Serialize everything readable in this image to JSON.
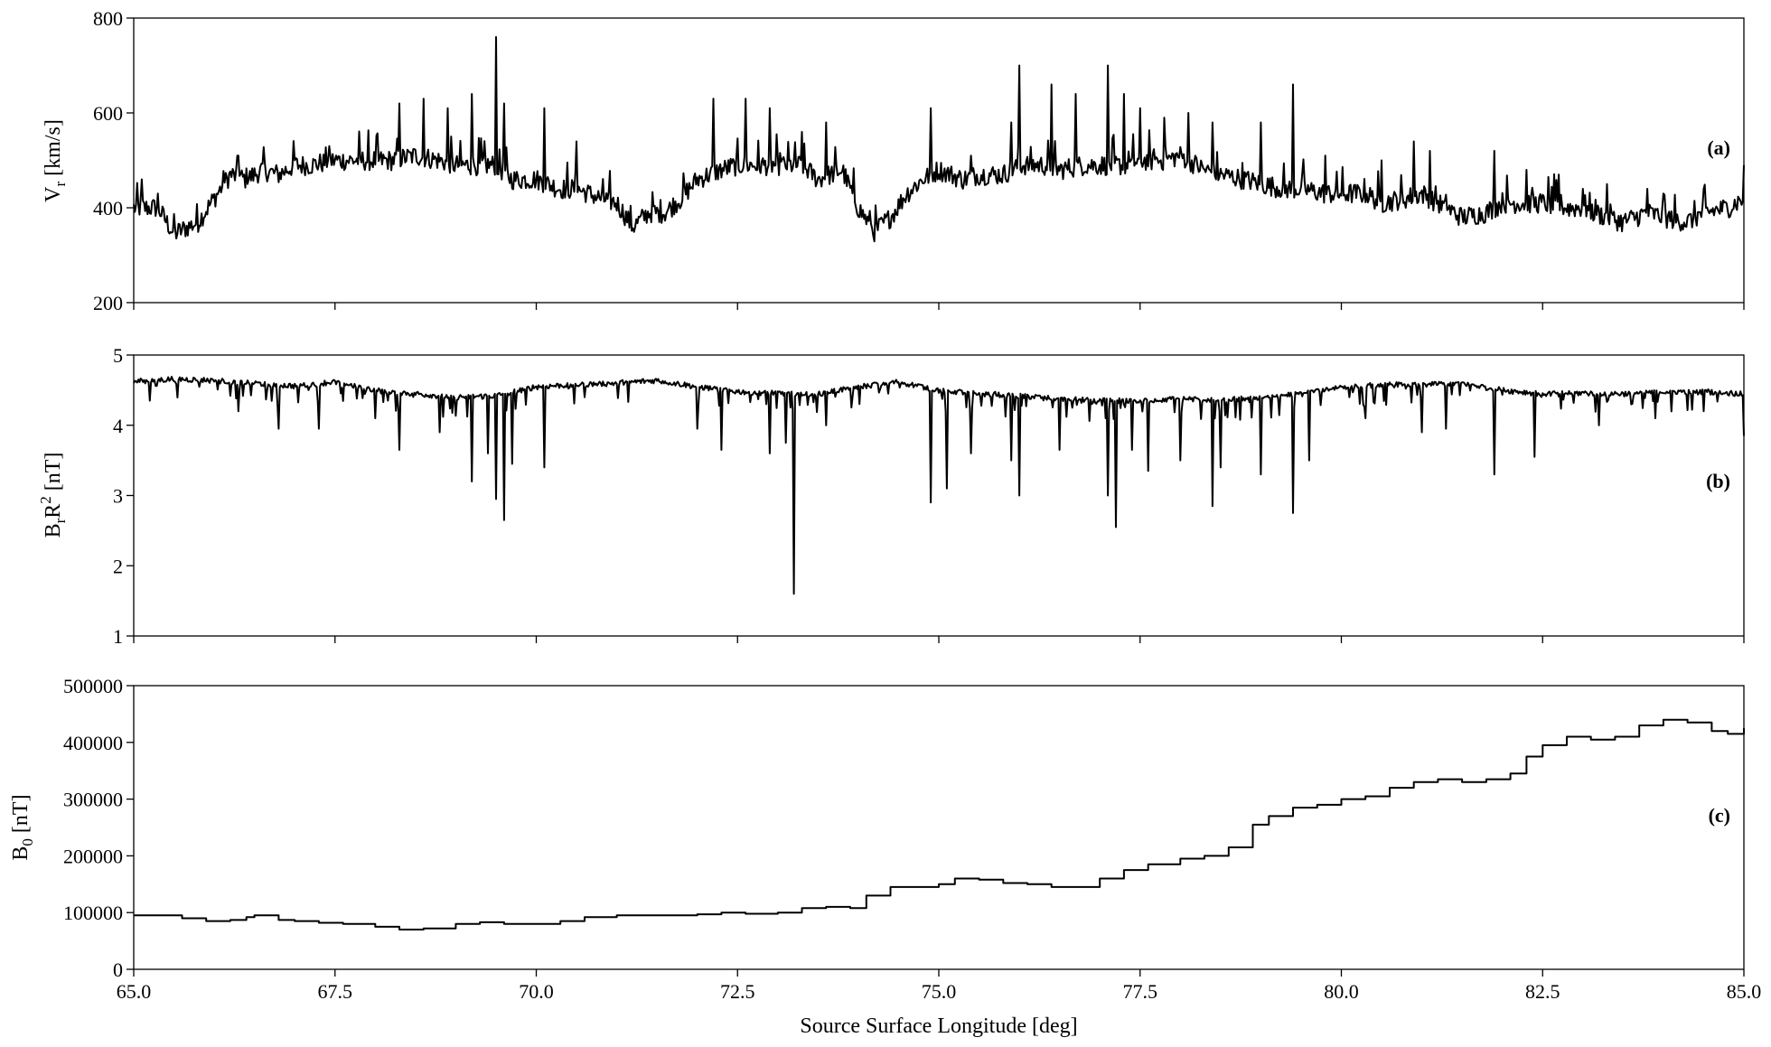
{
  "chart_data": [
    {
      "type": "line",
      "panel_tag": "(a)",
      "ylabel_main": "V",
      "ylabel_sub": "r",
      "ylabel_rest": " [km/s]",
      "xlim": [
        65.0,
        85.0
      ],
      "ylim": [
        200,
        800
      ],
      "yticks": [
        {
          "value": 200,
          "label": "200"
        },
        {
          "value": 400,
          "label": "400"
        },
        {
          "value": 600,
          "label": "600"
        },
        {
          "value": 800,
          "label": "800"
        }
      ],
      "x": [
        65.0,
        65.3,
        65.5,
        65.8,
        66.0,
        66.2,
        66.4,
        66.6,
        66.8,
        67.0,
        67.2,
        67.5,
        67.7,
        68.0,
        68.2,
        68.5,
        68.8,
        69.0,
        69.3,
        69.5,
        69.7,
        70.0,
        70.3,
        70.5,
        70.8,
        71.0,
        71.2,
        71.4,
        71.6,
        71.8,
        72.0,
        72.3,
        72.5,
        72.8,
        73.0,
        73.3,
        73.5,
        73.8,
        74.0,
        74.2,
        74.4,
        74.6,
        74.8,
        75.0,
        75.3,
        75.5,
        75.8,
        76.0,
        76.3,
        76.5,
        76.8,
        77.0,
        77.3,
        77.5,
        77.8,
        78.0,
        78.3,
        78.5,
        78.8,
        79.0,
        79.3,
        79.5,
        79.8,
        80.0,
        80.3,
        80.5,
        80.8,
        81.0,
        81.3,
        81.5,
        81.8,
        82.0,
        82.3,
        82.5,
        82.8,
        83.0,
        83.3,
        83.5,
        83.8,
        84.0,
        84.3,
        84.5,
        84.8,
        85.0
      ],
      "y": [
        400,
        400,
        345,
        370,
        420,
        470,
        460,
        480,
        470,
        490,
        490,
        500,
        500,
        500,
        500,
        510,
        500,
        490,
        490,
        490,
        460,
        460,
        440,
        440,
        420,
        410,
        360,
        390,
        390,
        420,
        460,
        480,
        490,
        490,
        490,
        490,
        460,
        480,
        400,
        350,
        380,
        430,
        460,
        480,
        460,
        470,
        470,
        490,
        490,
        480,
        490,
        490,
        490,
        500,
        500,
        510,
        480,
        470,
        460,
        450,
        440,
        440,
        430,
        430,
        430,
        410,
        420,
        430,
        400,
        380,
        390,
        410,
        410,
        410,
        400,
        400,
        380,
        370,
        390,
        380,
        370,
        390,
        400,
        420
      ],
      "spikes": [
        [
          65.1,
          460
        ],
        [
          65.3,
          430
        ],
        [
          66.3,
          510
        ],
        [
          67.0,
          500
        ],
        [
          68.3,
          620
        ],
        [
          68.6,
          630
        ],
        [
          68.9,
          610
        ],
        [
          69.2,
          640
        ],
        [
          69.5,
          760
        ],
        [
          69.6,
          620
        ],
        [
          70.1,
          610
        ],
        [
          70.5,
          540
        ],
        [
          72.2,
          630
        ],
        [
          72.6,
          630
        ],
        [
          72.9,
          610
        ],
        [
          73.3,
          560
        ],
        [
          73.6,
          580
        ],
        [
          74.9,
          610
        ],
        [
          75.4,
          510
        ],
        [
          75.9,
          580
        ],
        [
          76.0,
          700
        ],
        [
          76.4,
          660
        ],
        [
          76.7,
          640
        ],
        [
          77.1,
          700
        ],
        [
          77.3,
          640
        ],
        [
          77.5,
          610
        ],
        [
          77.8,
          590
        ],
        [
          78.1,
          600
        ],
        [
          78.4,
          580
        ],
        [
          79.0,
          580
        ],
        [
          79.4,
          660
        ],
        [
          79.8,
          510
        ],
        [
          80.5,
          500
        ],
        [
          80.9,
          540
        ],
        [
          81.1,
          520
        ],
        [
          81.9,
          520
        ],
        [
          82.3,
          480
        ],
        [
          82.7,
          470
        ],
        [
          83.0,
          440
        ],
        [
          83.3,
          450
        ],
        [
          83.8,
          440
        ],
        [
          84.0,
          430
        ],
        [
          84.5,
          440
        ],
        [
          85.0,
          490
        ]
      ]
    },
    {
      "type": "line",
      "panel_tag": "(b)",
      "ylabel_main": "B",
      "ylabel_sub": "r",
      "ylabel_mid": "R",
      "ylabel_sup": "2",
      "ylabel_rest": "  [nT]",
      "xlim": [
        65.0,
        85.0
      ],
      "ylim": [
        1,
        5
      ],
      "yticks": [
        {
          "value": 1,
          "label": "1"
        },
        {
          "value": 2,
          "label": "2"
        },
        {
          "value": 3,
          "label": "3"
        },
        {
          "value": 4,
          "label": "4"
        },
        {
          "value": 5,
          "label": "5"
        }
      ],
      "x": [
        65.0,
        65.5,
        66.0,
        66.5,
        67.0,
        67.5,
        68.0,
        68.5,
        69.0,
        69.5,
        70.0,
        70.5,
        71.0,
        71.5,
        72.0,
        72.5,
        73.0,
        73.5,
        74.0,
        74.5,
        75.0,
        75.5,
        76.0,
        76.5,
        77.0,
        77.5,
        78.0,
        78.5,
        79.0,
        79.5,
        80.0,
        80.5,
        81.0,
        81.5,
        82.0,
        82.5,
        83.0,
        83.5,
        84.0,
        84.5,
        85.0
      ],
      "y": [
        4.62,
        4.66,
        4.64,
        4.6,
        4.56,
        4.62,
        4.5,
        4.45,
        4.4,
        4.42,
        4.55,
        4.58,
        4.6,
        4.64,
        4.55,
        4.48,
        4.46,
        4.45,
        4.55,
        4.62,
        4.5,
        4.45,
        4.42,
        4.38,
        4.36,
        4.35,
        4.38,
        4.36,
        4.4,
        4.45,
        4.55,
        4.58,
        4.58,
        4.6,
        4.5,
        4.45,
        4.46,
        4.45,
        4.48,
        4.48,
        4.45
      ],
      "spikes": [
        [
          65.2,
          4.35
        ],
        [
          66.3,
          4.2
        ],
        [
          66.8,
          3.95
        ],
        [
          67.3,
          3.95
        ],
        [
          68.0,
          4.1
        ],
        [
          68.3,
          3.65
        ],
        [
          68.8,
          3.9
        ],
        [
          69.2,
          3.2
        ],
        [
          69.4,
          3.6
        ],
        [
          69.5,
          2.95
        ],
        [
          69.6,
          2.65
        ],
        [
          69.7,
          3.45
        ],
        [
          70.1,
          3.4
        ],
        [
          72.0,
          3.95
        ],
        [
          72.3,
          3.65
        ],
        [
          72.9,
          3.6
        ],
        [
          73.1,
          3.75
        ],
        [
          73.2,
          1.6
        ],
        [
          73.6,
          4.0
        ],
        [
          74.9,
          2.9
        ],
        [
          75.1,
          3.1
        ],
        [
          75.4,
          3.6
        ],
        [
          75.9,
          3.5
        ],
        [
          76.0,
          3.0
        ],
        [
          76.5,
          3.65
        ],
        [
          77.1,
          3.0
        ],
        [
          77.2,
          2.55
        ],
        [
          77.4,
          3.65
        ],
        [
          77.6,
          3.35
        ],
        [
          78.0,
          3.5
        ],
        [
          78.4,
          2.85
        ],
        [
          78.5,
          3.4
        ],
        [
          79.0,
          3.3
        ],
        [
          79.4,
          2.75
        ],
        [
          79.6,
          3.5
        ],
        [
          80.3,
          4.1
        ],
        [
          81.0,
          3.9
        ],
        [
          81.3,
          3.95
        ],
        [
          81.9,
          3.3
        ],
        [
          82.4,
          3.55
        ],
        [
          83.2,
          4.0
        ],
        [
          83.9,
          4.1
        ],
        [
          84.5,
          4.2
        ],
        [
          85.0,
          3.85
        ]
      ]
    },
    {
      "type": "line",
      "panel_tag": "(c)",
      "ylabel_main": "B",
      "ylabel_sub": "0",
      "ylabel_rest": " [nT]",
      "xlabel": "Source Surface Longitude  [deg]",
      "xlim": [
        65.0,
        85.0
      ],
      "ylim": [
        0,
        500000
      ],
      "yticks": [
        {
          "value": 0,
          "label": "0"
        },
        {
          "value": 100000,
          "label": "100000"
        },
        {
          "value": 200000,
          "label": "200000"
        },
        {
          "value": 300000,
          "label": "300000"
        },
        {
          "value": 400000,
          "label": "400000"
        },
        {
          "value": 500000,
          "label": "500000"
        }
      ],
      "xticks": [
        {
          "value": 65.0,
          "label": "65.0"
        },
        {
          "value": 67.5,
          "label": "67.5"
        },
        {
          "value": 70.0,
          "label": "70.0"
        },
        {
          "value": 72.5,
          "label": "72.5"
        },
        {
          "value": 75.0,
          "label": "75.0"
        },
        {
          "value": 77.5,
          "label": "77.5"
        },
        {
          "value": 80.0,
          "label": "80.0"
        },
        {
          "value": 82.5,
          "label": "82.5"
        },
        {
          "value": 85.0,
          "label": "85.0"
        }
      ],
      "x": [
        65.0,
        65.3,
        65.6,
        65.9,
        66.2,
        66.4,
        66.5,
        66.8,
        67.0,
        67.3,
        67.6,
        68.0,
        68.3,
        68.6,
        69.0,
        69.3,
        69.6,
        70.0,
        70.3,
        70.6,
        71.0,
        71.3,
        71.6,
        72.0,
        72.3,
        72.6,
        73.0,
        73.3,
        73.6,
        73.9,
        74.1,
        74.4,
        74.7,
        75.0,
        75.2,
        75.5,
        75.8,
        76.1,
        76.4,
        76.7,
        77.0,
        77.3,
        77.6,
        78.0,
        78.3,
        78.6,
        78.9,
        79.1,
        79.4,
        79.7,
        80.0,
        80.3,
        80.6,
        80.9,
        81.2,
        81.5,
        81.8,
        82.1,
        82.3,
        82.5,
        82.8,
        83.1,
        83.4,
        83.7,
        84.0,
        84.3,
        84.6,
        84.8,
        85.0
      ],
      "y": [
        95000,
        95000,
        90000,
        85000,
        87000,
        92000,
        95000,
        87000,
        85000,
        82000,
        80000,
        75000,
        70000,
        72000,
        80000,
        83000,
        80000,
        80000,
        85000,
        92000,
        95000,
        95000,
        95000,
        97000,
        100000,
        98000,
        100000,
        108000,
        110000,
        108000,
        130000,
        145000,
        145000,
        150000,
        160000,
        158000,
        152000,
        150000,
        145000,
        145000,
        160000,
        175000,
        185000,
        195000,
        200000,
        215000,
        255000,
        270000,
        285000,
        290000,
        300000,
        305000,
        320000,
        330000,
        335000,
        330000,
        335000,
        345000,
        375000,
        395000,
        410000,
        405000,
        410000,
        430000,
        440000,
        435000,
        420000,
        415000,
        425000
      ]
    }
  ]
}
